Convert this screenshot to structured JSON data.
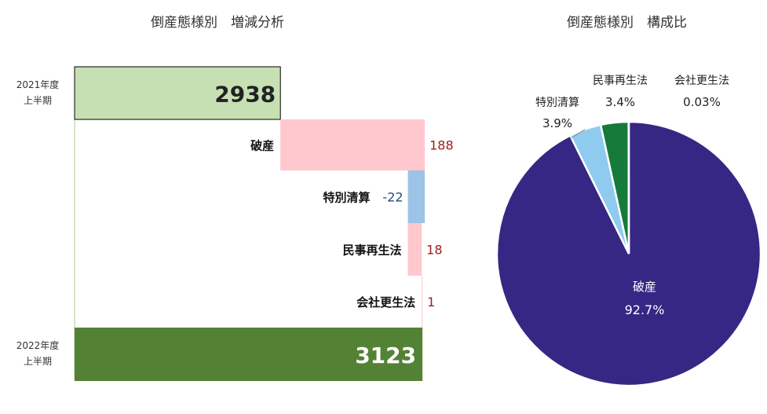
{
  "chart_data": [
    {
      "type": "bar",
      "subtype": "waterfall",
      "title": "倒産態様別　増減分析",
      "start": {
        "label_line1": "2021年度",
        "label_line2": "上半期",
        "value": 2938,
        "color": "#c6e0b4"
      },
      "steps": [
        {
          "name": "破産",
          "value": 188,
          "label": "188",
          "color": "#ffc7ce",
          "label_color": "#9c1c1c"
        },
        {
          "name": "特別清算",
          "value": -22,
          "label": "-22",
          "color": "#9dc3e6",
          "label_color": "#1f4e79"
        },
        {
          "name": "民事再生法",
          "value": 18,
          "label": "18",
          "color": "#ffc7ce",
          "label_color": "#9c1c1c"
        },
        {
          "name": "会社更生法",
          "value": 1,
          "label": "1",
          "color": "#ffc7ce",
          "label_color": "#9c1c1c"
        }
      ],
      "end": {
        "label_line1": "2022年度",
        "label_line2": "上半期",
        "value": 3123,
        "color": "#548235"
      },
      "xlim": [
        2670,
        3130
      ]
    },
    {
      "type": "pie",
      "title": "倒産態様別　構成比",
      "slices": [
        {
          "name": "破産",
          "value": 92.7,
          "label": "92.7%",
          "color": "#362785"
        },
        {
          "name": "特別清算",
          "value": 3.9,
          "label": "3.9%",
          "color": "#8ecbee"
        },
        {
          "name": "民事再生法",
          "value": 3.4,
          "label": "3.4%",
          "color": "#157a3a"
        },
        {
          "name": "会社更生法",
          "value": 0.03,
          "label": "0.03%",
          "color": "#c00000"
        }
      ]
    }
  ]
}
